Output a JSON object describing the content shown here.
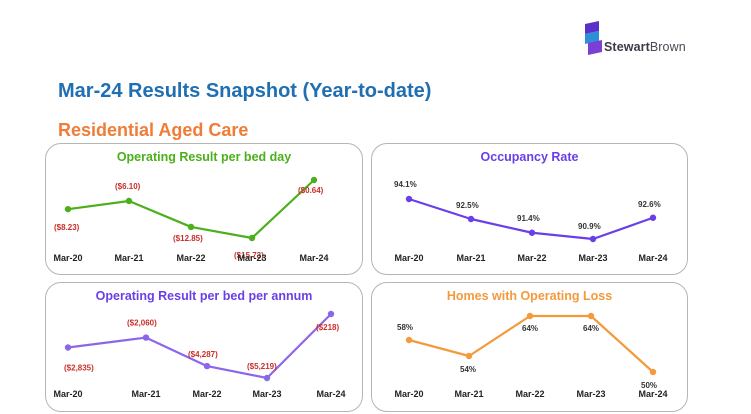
{
  "header": {
    "logo_bold": "Stewart",
    "logo_light": "Brown",
    "title": "Mar-24 Results Snapshot (Year-to-date)",
    "subtitle": "Residential Aged Care"
  },
  "colors": {
    "title": "#1f6fb2",
    "subtitle": "#f07c37",
    "green": "#4caf1c",
    "purple": "#6a3fe8",
    "purple_light": "#8c66ea",
    "orange": "#f39a3c",
    "negative_label": "#c8302a",
    "logo_purple": "#5b2fc9",
    "logo_blue": "#2e8fd8"
  },
  "chart_data": [
    {
      "type": "line",
      "title": "Operating Result per bed day",
      "categories": [
        "Mar-20",
        "Mar-21",
        "Mar-22",
        "Mar-23",
        "Mar-24"
      ],
      "values": [
        -8.23,
        -6.1,
        -12.85,
        -15.73,
        -0.64
      ],
      "labels": [
        "($8.23)",
        "($6.10)",
        "($12.85)",
        "($15.73)",
        "($0.64)"
      ],
      "color": "#4caf1c",
      "label_color": "#c8302a"
    },
    {
      "type": "line",
      "title": "Occupancy Rate",
      "categories": [
        "Mar-20",
        "Mar-21",
        "Mar-22",
        "Mar-23",
        "Mar-24"
      ],
      "values": [
        94.1,
        92.5,
        91.4,
        90.9,
        92.6
      ],
      "labels": [
        "94.1%",
        "92.5%",
        "91.4%",
        "90.9%",
        "92.6%"
      ],
      "color": "#6a3fe8",
      "label_color": "#333333"
    },
    {
      "type": "line",
      "title": "Operating Result per bed per annum",
      "categories": [
        "Mar-20",
        "Mar-21",
        "Mar-22",
        "Mar-23",
        "Mar-24"
      ],
      "values": [
        -2835,
        -2060,
        -4287,
        -5219,
        -218
      ],
      "labels": [
        "($2,835)",
        "($2,060)",
        "($4,287)",
        "($5,219)",
        "($218)"
      ],
      "color": "#8c66ea",
      "label_color": "#c8302a"
    },
    {
      "type": "line",
      "title": "Homes with Operating Loss",
      "categories": [
        "Mar-20",
        "Mar-21",
        "Mar-22",
        "Mar-23",
        "Mar-24"
      ],
      "values": [
        58,
        54,
        64,
        64,
        50
      ],
      "labels": [
        "58%",
        "54%",
        "64%",
        "64%",
        "50%"
      ],
      "color": "#f39a3c",
      "label_color": "#333333"
    }
  ]
}
